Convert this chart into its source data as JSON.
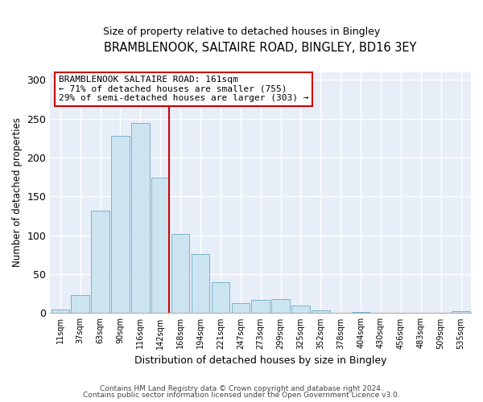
{
  "title": "BRAMBLENOOK, SALTAIRE ROAD, BINGLEY, BD16 3EY",
  "subtitle": "Size of property relative to detached houses in Bingley",
  "xlabel": "Distribution of detached houses by size in Bingley",
  "ylabel": "Number of detached properties",
  "bar_labels": [
    "11sqm",
    "37sqm",
    "63sqm",
    "90sqm",
    "116sqm",
    "142sqm",
    "168sqm",
    "194sqm",
    "221sqm",
    "247sqm",
    "273sqm",
    "299sqm",
    "325sqm",
    "352sqm",
    "378sqm",
    "404sqm",
    "430sqm",
    "456sqm",
    "483sqm",
    "509sqm",
    "535sqm"
  ],
  "bar_values": [
    5,
    23,
    132,
    228,
    244,
    174,
    102,
    76,
    40,
    13,
    17,
    18,
    10,
    4,
    0,
    1,
    0,
    0,
    0,
    0,
    2
  ],
  "bar_color": "#cce4f0",
  "bar_edge_color": "#7ab3cc",
  "vline_x_idx": 5.42,
  "vline_color": "#cc0000",
  "annotation_title": "BRAMBLENOOK SALTAIRE ROAD: 161sqm",
  "annotation_line1": "← 71% of detached houses are smaller (755)",
  "annotation_line2": "29% of semi-detached houses are larger (303) →",
  "ylim": [
    0,
    310
  ],
  "yticks": [
    0,
    50,
    100,
    150,
    200,
    250,
    300
  ],
  "footer1": "Contains HM Land Registry data © Crown copyright and database right 2024.",
  "footer2": "Contains public sector information licensed under the Open Government Licence v3.0.",
  "bg_color": "#ffffff",
  "plot_bg_color": "#e8eef8",
  "grid_color": "#ffffff",
  "title_fontsize": 10.5,
  "subtitle_fontsize": 9
}
